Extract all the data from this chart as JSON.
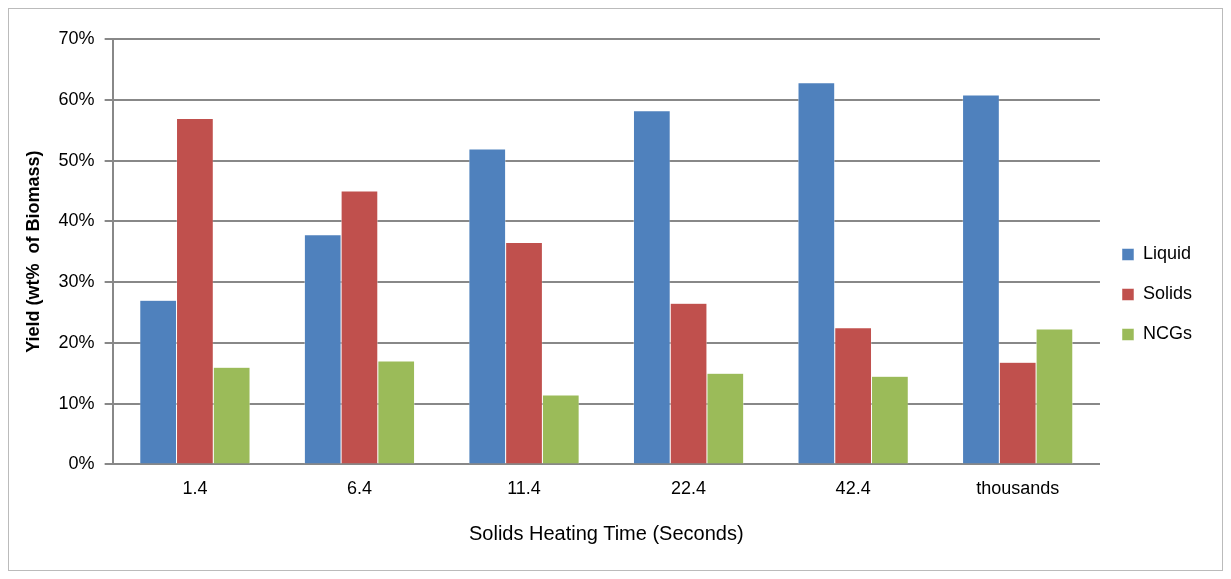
{
  "chart_data": {
    "type": "bar",
    "xlabel": "Solids Heating Time (Seconds)",
    "ylabel": "Yield (wt%  of Biomass)",
    "categories": [
      "1.4",
      "6.4",
      "11.4",
      "22.4",
      "42.4",
      "thousands"
    ],
    "series": [
      {
        "name": "Liquid",
        "color": "#4f81bd",
        "values": [
          27,
          37.8,
          51.9,
          58.2,
          62.8,
          60.8
        ]
      },
      {
        "name": "Solids",
        "color": "#c0504d",
        "values": [
          56.9,
          45,
          36.5,
          26.5,
          22.5,
          16.8
        ]
      },
      {
        "name": "NCGs",
        "color": "#9bbb59",
        "values": [
          16,
          17,
          11.4,
          15,
          14.5,
          22.3
        ]
      }
    ],
    "ylim": [
      0,
      70
    ],
    "yticks": [
      {
        "value": 0,
        "label": "0%"
      },
      {
        "value": 10,
        "label": "10%"
      },
      {
        "value": 20,
        "label": "20%"
      },
      {
        "value": 30,
        "label": "30%"
      },
      {
        "value": 40,
        "label": "40%"
      },
      {
        "value": 50,
        "label": "50%"
      },
      {
        "value": 60,
        "label": "60%"
      },
      {
        "value": 70,
        "label": "70%"
      }
    ],
    "grid": "y",
    "legend": "right"
  }
}
